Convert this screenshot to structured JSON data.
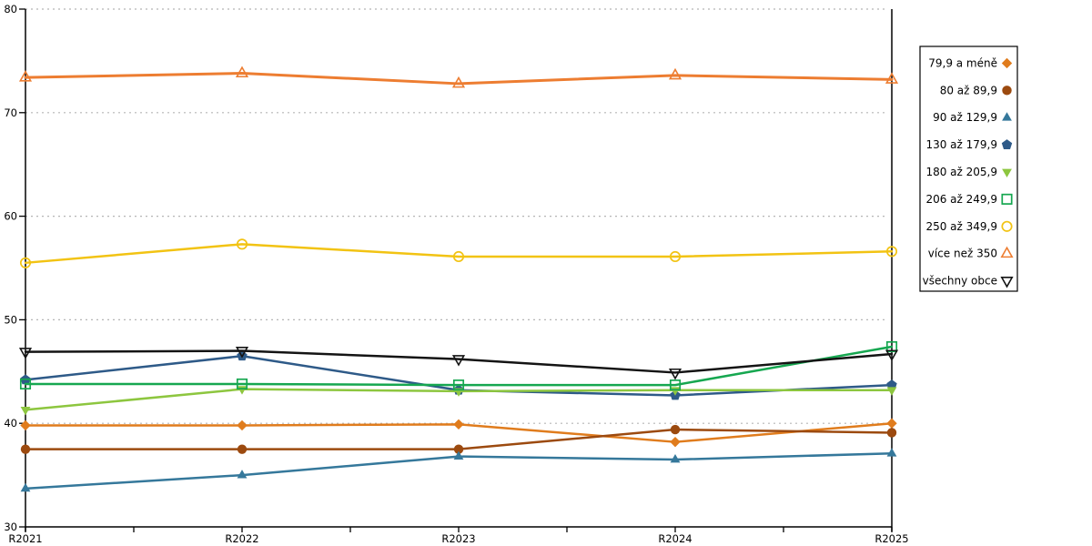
{
  "chart_data": {
    "type": "line",
    "title": "",
    "xlabel": "",
    "ylabel": "",
    "x_categories": [
      "R2021",
      "R2022",
      "R2023",
      "R2024",
      "R2025"
    ],
    "ylim": [
      30,
      80
    ],
    "yticks": [
      30,
      40,
      50,
      60,
      70,
      80
    ],
    "grid": "horizontal-dotted",
    "legend_position": "right-outside",
    "colors": {
      "axis": "#000000",
      "gridline": "#b5b5b5",
      "legend_border": "#000000",
      "legend_background": "#ffffff"
    },
    "series": [
      {
        "name": "79,9 a méně",
        "marker": "diamond-filled",
        "color": "#e07c1d",
        "line_width": 2.5,
        "values": [
          39.8,
          39.8,
          39.9,
          38.2,
          40.0
        ]
      },
      {
        "name": "80 až 89,9",
        "marker": "circle-filled",
        "color": "#9c4a0f",
        "line_width": 2.5,
        "values": [
          37.5,
          37.5,
          37.5,
          39.4,
          39.1
        ]
      },
      {
        "name": "90 až 129,9",
        "marker": "triangle-up-filled",
        "color": "#35789b",
        "line_width": 2.5,
        "values": [
          33.7,
          35.0,
          36.8,
          36.5,
          37.1
        ]
      },
      {
        "name": "130 až 179,9",
        "marker": "pentagon-filled",
        "color": "#2e5a88",
        "line_width": 2.5,
        "values": [
          44.2,
          46.5,
          43.2,
          42.7,
          43.7
        ]
      },
      {
        "name": "180 až 205,9",
        "marker": "triangle-down-filled",
        "color": "#8dc63f",
        "line_width": 2.5,
        "values": [
          41.3,
          43.3,
          43.1,
          43.2,
          43.2
        ]
      },
      {
        "name": "206 až 249,9",
        "marker": "square-open",
        "color": "#16a750",
        "line_width": 2.5,
        "values": [
          43.8,
          43.8,
          43.7,
          43.7,
          47.4
        ]
      },
      {
        "name": "250 až 349,9",
        "marker": "circle-open",
        "color": "#f2c313",
        "line_width": 2.5,
        "values": [
          55.5,
          57.3,
          56.1,
          56.1,
          56.6
        ]
      },
      {
        "name": "více než 350",
        "marker": "triangle-up-open",
        "color": "#ed7d31",
        "line_width": 3.0,
        "values": [
          73.4,
          73.8,
          72.8,
          73.6,
          73.2
        ]
      },
      {
        "name": "všechny obce",
        "marker": "triangle-down-open",
        "color": "#141414",
        "line_width": 2.5,
        "values": [
          46.9,
          47.0,
          46.2,
          44.9,
          46.7
        ]
      }
    ]
  }
}
